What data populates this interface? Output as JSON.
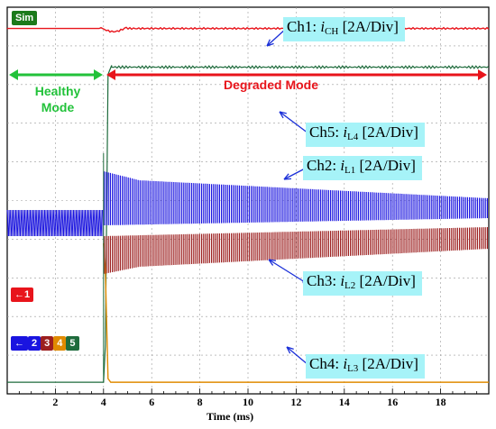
{
  "chart_data": {
    "type": "line",
    "title": "",
    "xlabel": "Time (ms)",
    "ylabel": "",
    "xlim": [
      0,
      20
    ],
    "x_ticks": [
      "2",
      "4",
      "6",
      "8",
      "10",
      "12",
      "14",
      "16",
      "18"
    ],
    "grid": true,
    "event_time_ms": 4,
    "series": [
      {
        "name": "Ch1: iCH [2A/Div]",
        "color": "#e8141b",
        "pre_event_level_div": 9.45,
        "post_event_level_div": 9.45
      },
      {
        "name": "Ch5: iL4 [2A/Div]",
        "color": "#1e6b3c",
        "pre_event_level_div": 0.3,
        "post_event_level_div": 8.45
      },
      {
        "name": "Ch2: iL1 [2A/Div]",
        "color": "#1a14e0",
        "pre_event_level_div": 4.55,
        "post_event_level_div": 5.25
      },
      {
        "name": "Ch3: iL2 [2A/Div]",
        "color": "#9c1f1f",
        "pre_event_level_div": 4.55,
        "post_event_level_div": 3.85
      },
      {
        "name": "Ch4: iL3 [2A/Div]",
        "color": "#e08a00",
        "pre_event_level_div": 4.55,
        "post_event_level_div": 0.3
      }
    ]
  },
  "badges": {
    "sim": "Sim",
    "ch1_marker": "←1",
    "group_marker": [
      "←",
      "2",
      "3",
      "4",
      "5"
    ],
    "group_colors": [
      "#1a14e0",
      "#9c1f1f",
      "#e08a00",
      "#1e6b3c"
    ]
  },
  "modes": {
    "healthy": [
      "Healthy",
      "Mode"
    ],
    "degraded": "Degraded Mode"
  },
  "callouts": [
    {
      "prefix": "Ch1: ",
      "var": "i",
      "sub": "CH",
      "suffix": " [2A/Div]"
    },
    {
      "prefix": "Ch5: ",
      "var": "i",
      "sub": "L4",
      "suffix": " [2A/Div]"
    },
    {
      "prefix": "Ch2: ",
      "var": "i",
      "sub": "L1",
      "suffix": " [2A/Div]"
    },
    {
      "prefix": "Ch3: ",
      "var": "i",
      "sub": "L2",
      "suffix": " [2A/Div]"
    },
    {
      "prefix": "Ch4: ",
      "var": "i",
      "sub": "L3",
      "suffix": " [2A/Div]"
    }
  ]
}
